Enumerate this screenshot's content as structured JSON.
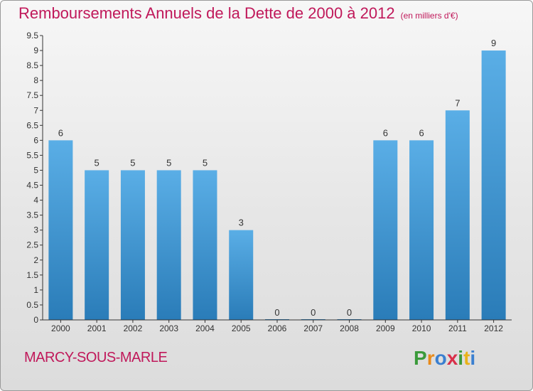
{
  "title": "Remboursements Annuels de la Dette de 2000 à 2012",
  "unit": "(en milliers d'€)",
  "commune": "MARCY-SOUS-MARLE",
  "brand": {
    "letters": [
      "P",
      "r",
      "o",
      "x",
      "i",
      "t",
      "i"
    ],
    "colors": [
      "#3a9a3a",
      "#e88a1a",
      "#3a7fd0",
      "#d9304a",
      "#3a9a3a",
      "#e8b21a",
      "#3a7fd0"
    ]
  },
  "colors": {
    "bar_top": "#5aaee6",
    "bar_bottom": "#2a7cb8",
    "title": "#c0185a"
  },
  "chart_data": {
    "type": "bar",
    "categories": [
      "2000",
      "2001",
      "2002",
      "2003",
      "2004",
      "2005",
      "2006",
      "2007",
      "2008",
      "2009",
      "2010",
      "2011",
      "2012"
    ],
    "values": [
      6,
      5,
      5,
      5,
      5,
      3,
      0,
      0,
      0,
      6,
      6,
      7,
      9
    ],
    "ylim": [
      0,
      9.5
    ],
    "yticks": [
      "0",
      "0.5",
      "1",
      "1.5",
      "2",
      "2.5",
      "3",
      "3.5",
      "4",
      "4.5",
      "5",
      "5.5",
      "6",
      "6.5",
      "7",
      "7.5",
      "8",
      "8.5",
      "9",
      "9.5"
    ],
    "grid": false,
    "data_labels": true
  }
}
